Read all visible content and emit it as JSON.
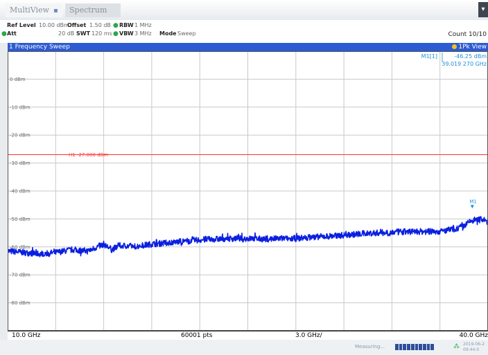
{
  "tabs": [
    {
      "label": "MultiView",
      "close": "▪"
    },
    {
      "label": "Spectrum"
    }
  ],
  "params": {
    "ref_level_label": "Ref Level",
    "ref_level_value": "10.00 dBm",
    "offset_label": "Offset",
    "offset_value": "1.50 dB",
    "rbw_label": "RBW",
    "rbw_value": "1 MHz",
    "att_label": "Att",
    "att_value": "20 dB",
    "swt_label": "SWT",
    "swt_value": "120 ms",
    "vbw_label": "VBW",
    "vbw_value": "3 MHz",
    "mode_label": "Mode",
    "mode_value": "Sweep",
    "count": "Count 10/10"
  },
  "window": {
    "title": "1 Frequency Sweep",
    "view": "1Pk View"
  },
  "marker": {
    "name": "M1[1]",
    "level": "-46.25 dBm",
    "freq": "39.019 270 GHz",
    "label": "M1"
  },
  "limit_line": {
    "label": "H1 -27.000 dBm"
  },
  "footer": {
    "start": "10.0 GHz",
    "points": "60001 pts",
    "span": "3.0 GHz/",
    "stop": "40.0 GHz"
  },
  "status": {
    "measuring": "Measuring...",
    "date": "2019-06-2",
    "time": "09:44:0"
  },
  "colors": {
    "trace": "#0a1fe0",
    "limit": "#ff3030",
    "marker": "#1f8fd9",
    "header": "#2d5bd2"
  },
  "chart_data": {
    "type": "line",
    "xlabel": "",
    "ylabel": "",
    "x_unit": "GHz",
    "y_unit": "dBm",
    "xlim": [
      10.0,
      40.0
    ],
    "ylim": [
      -90,
      10
    ],
    "ytick_values": [
      0,
      -10,
      -20,
      -30,
      -40,
      -50,
      -60,
      -70,
      -80
    ],
    "ytick_labels": [
      "0 dBm",
      "-10 dBm",
      "-20 dBm",
      "-30 dBm",
      "-40 dBm",
      "-50 dBm",
      "-60 dBm",
      "-70 dBm",
      "-80 dBm"
    ],
    "grid": true,
    "limit_line_y": -27,
    "series": [
      {
        "x": [
          10.0,
          11.0,
          12.0,
          13.0,
          14.0,
          15.0,
          16.0,
          16.5,
          17.0,
          18.0,
          19.0,
          20.0,
          21.0,
          22.0,
          23.0,
          24.0,
          25.0,
          26.0,
          27.0,
          28.0,
          29.0,
          30.0,
          31.0,
          32.0,
          33.0,
          34.0,
          35.0,
          36.0,
          37.0,
          38.0,
          38.5,
          39.0,
          39.5,
          40.0
        ],
        "y": [
          -61.5,
          -62.0,
          -62.5,
          -62.0,
          -61.0,
          -61.5,
          -59.0,
          -61.0,
          -59.5,
          -59.8,
          -59.0,
          -58.5,
          -58.0,
          -57.5,
          -57.2,
          -57.0,
          -57.0,
          -57.2,
          -57.0,
          -57.0,
          -56.5,
          -56.2,
          -55.8,
          -55.3,
          -55.0,
          -54.8,
          -54.5,
          -54.5,
          -54.5,
          -53.5,
          -52.5,
          -50.5,
          -50.0,
          -51.0
        ]
      }
    ],
    "marker_point": {
      "x": 39.019,
      "y": -46.25
    }
  }
}
